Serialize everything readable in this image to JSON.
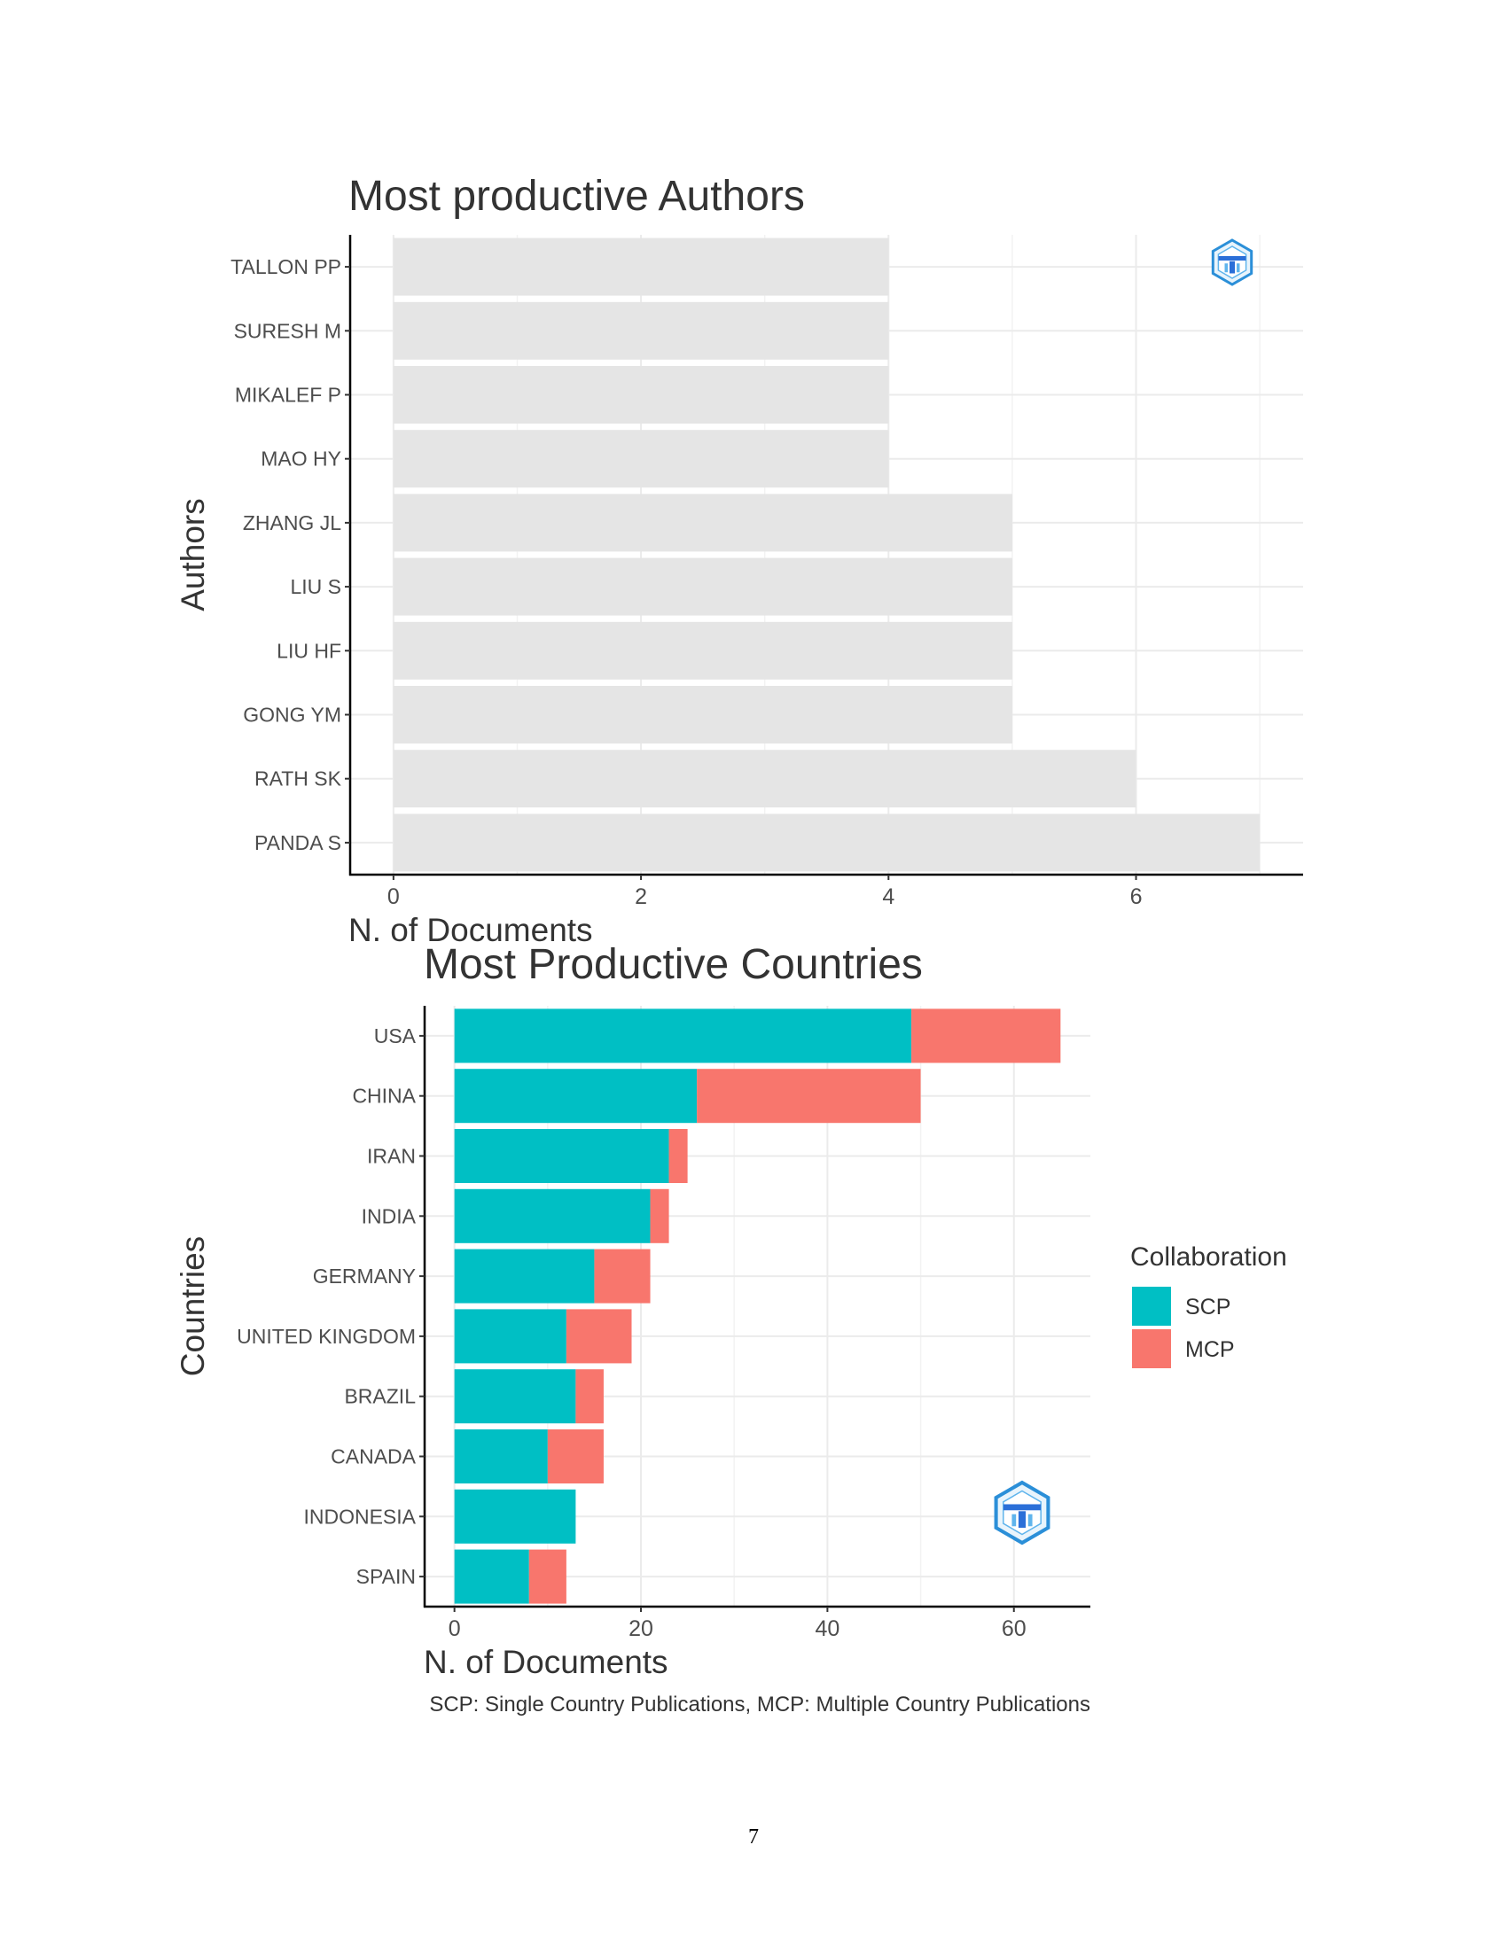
{
  "page_number": "7",
  "chart_data": [
    {
      "type": "bar",
      "orientation": "horizontal",
      "title": "Most productive Authors",
      "xlabel": "N. of Documents",
      "ylabel": "Authors",
      "categories": [
        "TALLON PP",
        "SURESH M",
        "MIKALEF P",
        "MAO HY",
        "ZHANG JL",
        "LIU S",
        "LIU HF",
        "GONG YM",
        "RATH SK",
        "PANDA S"
      ],
      "values": [
        4,
        4,
        4,
        4,
        5,
        5,
        5,
        5,
        6,
        7
      ],
      "xlim": [
        -0.35,
        7.35
      ],
      "xticks": [
        0,
        2,
        4,
        6
      ],
      "grid": true,
      "bar_color": "#e5e5e5",
      "logo": "bibliometrix-logo"
    },
    {
      "type": "bar",
      "orientation": "horizontal",
      "stacked": true,
      "title": "Most Productive Countries",
      "xlabel": "N. of Documents",
      "ylabel": "Countries",
      "caption": "SCP: Single Country Publications, MCP: Multiple Country Publications",
      "categories": [
        "USA",
        "CHINA",
        "IRAN",
        "INDIA",
        "GERMANY",
        "UNITED KINGDOM",
        "BRAZIL",
        "CANADA",
        "INDONESIA",
        "SPAIN"
      ],
      "series": [
        {
          "name": "SCP",
          "color": "#00bfc4",
          "values": [
            49,
            26,
            23,
            21,
            15,
            12,
            13,
            10,
            13,
            8
          ]
        },
        {
          "name": "MCP",
          "color": "#f8766d",
          "values": [
            16,
            24,
            2,
            2,
            6,
            7,
            3,
            6,
            0,
            4
          ]
        }
      ],
      "xlim": [
        -3.2,
        68.2
      ],
      "xticks": [
        0,
        20,
        40,
        60
      ],
      "grid": true,
      "legend": {
        "title": "Collaboration",
        "placement": "right"
      },
      "logo": "bibliometrix-logo"
    }
  ]
}
